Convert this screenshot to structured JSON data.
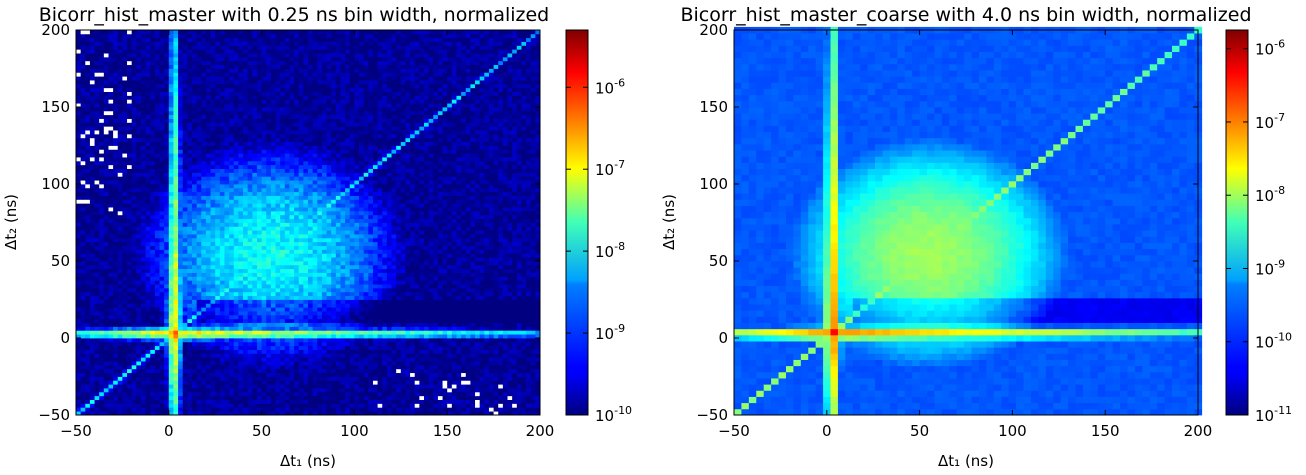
{
  "chart_data": [
    {
      "type": "heatmap",
      "title": "Bicorr_hist_master with 0.25 ns bin width, normalized",
      "xlabel": "Δt₁ (ns)",
      "ylabel": "Δt₂ (ns)",
      "xlim": [
        -50,
        200
      ],
      "ylim": [
        -50,
        200
      ],
      "xticks": [
        "−50",
        "0",
        "50",
        "100",
        "150",
        "200"
      ],
      "yticks": [
        "−50",
        "0",
        "50",
        "100",
        "150",
        "200"
      ],
      "xtick_values": [
        -50,
        0,
        50,
        100,
        150,
        200
      ],
      "ytick_values": [
        -50,
        0,
        50,
        100,
        150,
        200
      ],
      "bin_width_ns": 0.25,
      "colorbar": {
        "scale": "log",
        "range": [
          1e-10,
          5e-06
        ],
        "ticks": [
          {
            "value": 1e-10,
            "base": "10",
            "exp": "-10"
          },
          {
            "value": 1e-09,
            "base": "10",
            "exp": "-9"
          },
          {
            "value": 1e-08,
            "base": "10",
            "exp": "-8"
          },
          {
            "value": 1e-07,
            "base": "10",
            "exp": "-7"
          },
          {
            "value": 1e-06,
            "base": "10",
            "exp": "-6"
          }
        ]
      },
      "colormap": "jet"
    },
    {
      "type": "heatmap",
      "title": "Bicorr_hist_master_coarse with 4.0 ns bin width, normalized",
      "xlabel": "Δt₁ (ns)",
      "ylabel": "Δt₂ (ns)",
      "xlim": [
        -50,
        200
      ],
      "ylim": [
        -50,
        200
      ],
      "xticks": [
        "−50",
        "0",
        "50",
        "100",
        "150",
        "200"
      ],
      "yticks": [
        "−50",
        "0",
        "50",
        "100",
        "150",
        "200"
      ],
      "xtick_values": [
        -50,
        0,
        50,
        100,
        150,
        200
      ],
      "ytick_values": [
        -50,
        0,
        50,
        100,
        150,
        200
      ],
      "bin_width_ns": 4.0,
      "colorbar": {
        "scale": "log",
        "range": [
          1e-11,
          1.8e-06
        ],
        "ticks": [
          {
            "value": 1e-11,
            "base": "10",
            "exp": "-11"
          },
          {
            "value": 1e-10,
            "base": "10",
            "exp": "-10"
          },
          {
            "value": 1e-09,
            "base": "10",
            "exp": "-9"
          },
          {
            "value": 1e-08,
            "base": "10",
            "exp": "-8"
          },
          {
            "value": 1e-07,
            "base": "10",
            "exp": "-7"
          },
          {
            "value": 1e-06,
            "base": "10",
            "exp": "-6"
          }
        ]
      },
      "colormap": "jet"
    }
  ]
}
